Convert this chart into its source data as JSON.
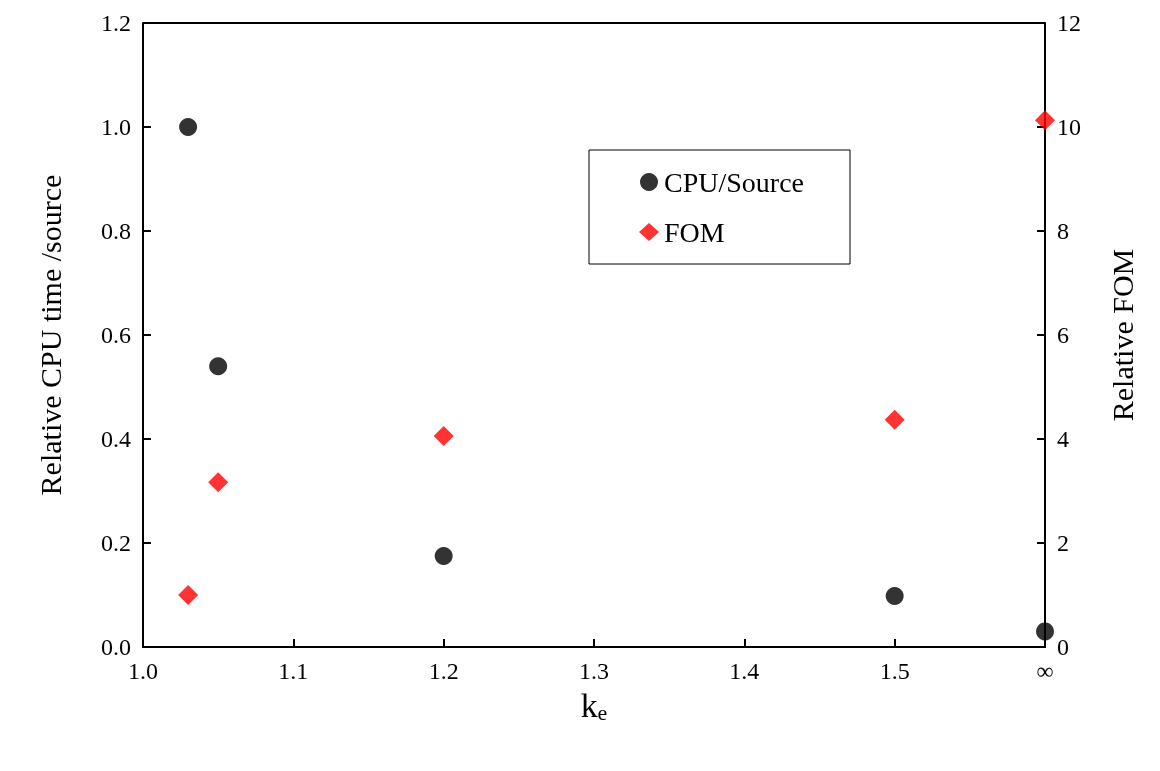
{
  "chart_data": {
    "type": "scatter",
    "xlabel": "k$_{e}$",
    "ylabel": "Relative CPU time /source",
    "y2label": "Relative FOM",
    "xlim": [
      1.0,
      1.6
    ],
    "xticks": [
      {
        "value": 1,
        "label": "1.0"
      },
      1.1,
      1.2,
      1.3,
      1.4,
      1.5,
      {
        "value": 1.6,
        "label": "∞"
      }
    ],
    "ylim": [
      0,
      1.2
    ],
    "yticks": [
      {
        "value": 0,
        "label": "0.0"
      },
      0.2,
      0.4,
      0.6,
      0.8,
      {
        "value": 1,
        "label": "1.0"
      },
      1.2
    ],
    "y2lim": [
      0,
      12
    ],
    "y2ticks": [
      0,
      2,
      4,
      6,
      8,
      10,
      12
    ],
    "grid": false,
    "legend": "top right",
    "series": [
      {
        "name": "CPU/Source",
        "color": "#000000",
        "marker": "circle",
        "x": [
          1.03,
          1.05,
          1.2,
          1.5,
          1.6
        ],
        "values": [
          1.0,
          0.54,
          0.175,
          0.098,
          0.03
        ]
      },
      {
        "name": "FOM",
        "color": "#ff0000",
        "marker": "diamond",
        "axis": "y2",
        "x": [
          1.03,
          1.05,
          1.2,
          1.5,
          1.6
        ],
        "values": [
          1.0,
          3.17,
          4.06,
          4.37,
          10.13
        ]
      }
    ]
  }
}
